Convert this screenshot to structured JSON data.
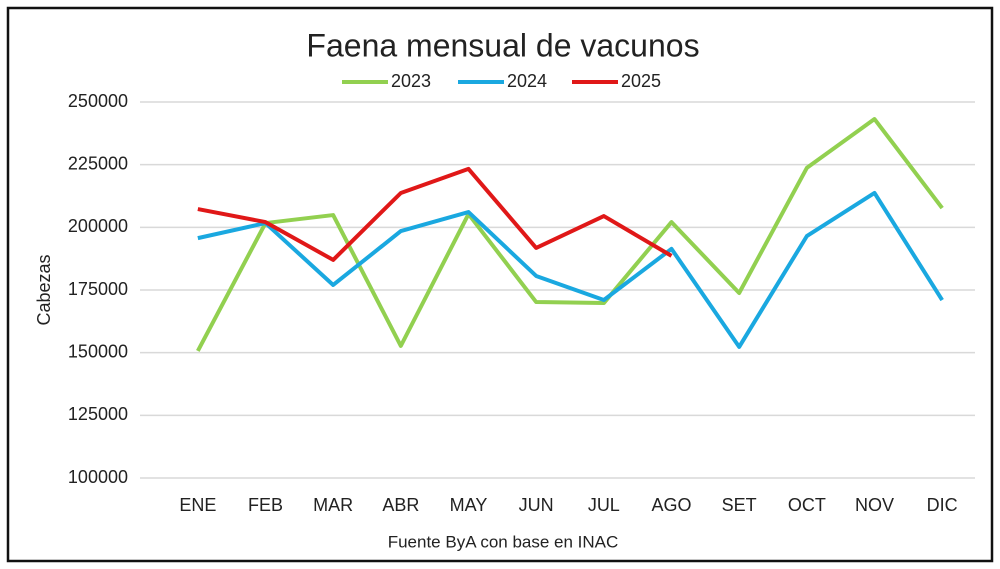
{
  "chart_data": {
    "type": "line",
    "title": "Faena mensual de vacunos",
    "y_label": "Cabezas",
    "source": "Fuente ByA con base en INAC",
    "categories": [
      "ENE",
      "FEB",
      "MAR",
      "ABR",
      "MAY",
      "JUN",
      "JUL",
      "AGO",
      "SET",
      "OCT",
      "NOV",
      "DIC"
    ],
    "series": [
      {
        "name": "2023",
        "color": "#92d050",
        "values": [
          150700,
          201700,
          204900,
          152700,
          205300,
          170200,
          169800,
          202100,
          173800,
          223700,
          243200,
          207700
        ]
      },
      {
        "name": "2024",
        "color": "#1aa8e0",
        "values": [
          195700,
          201700,
          177000,
          198500,
          206100,
          180600,
          171000,
          191400,
          152300,
          196500,
          213700,
          171000
        ]
      },
      {
        "name": "2025",
        "color": "#e01818",
        "values": [
          207300,
          202100,
          187000,
          213700,
          223300,
          191800,
          204500,
          188600,
          null,
          null,
          null,
          null
        ]
      }
    ],
    "ylim": [
      100000,
      250000
    ],
    "yticks": [
      100000,
      125000,
      150000,
      175000,
      200000,
      225000,
      250000
    ],
    "grid": true,
    "legend": "top"
  }
}
